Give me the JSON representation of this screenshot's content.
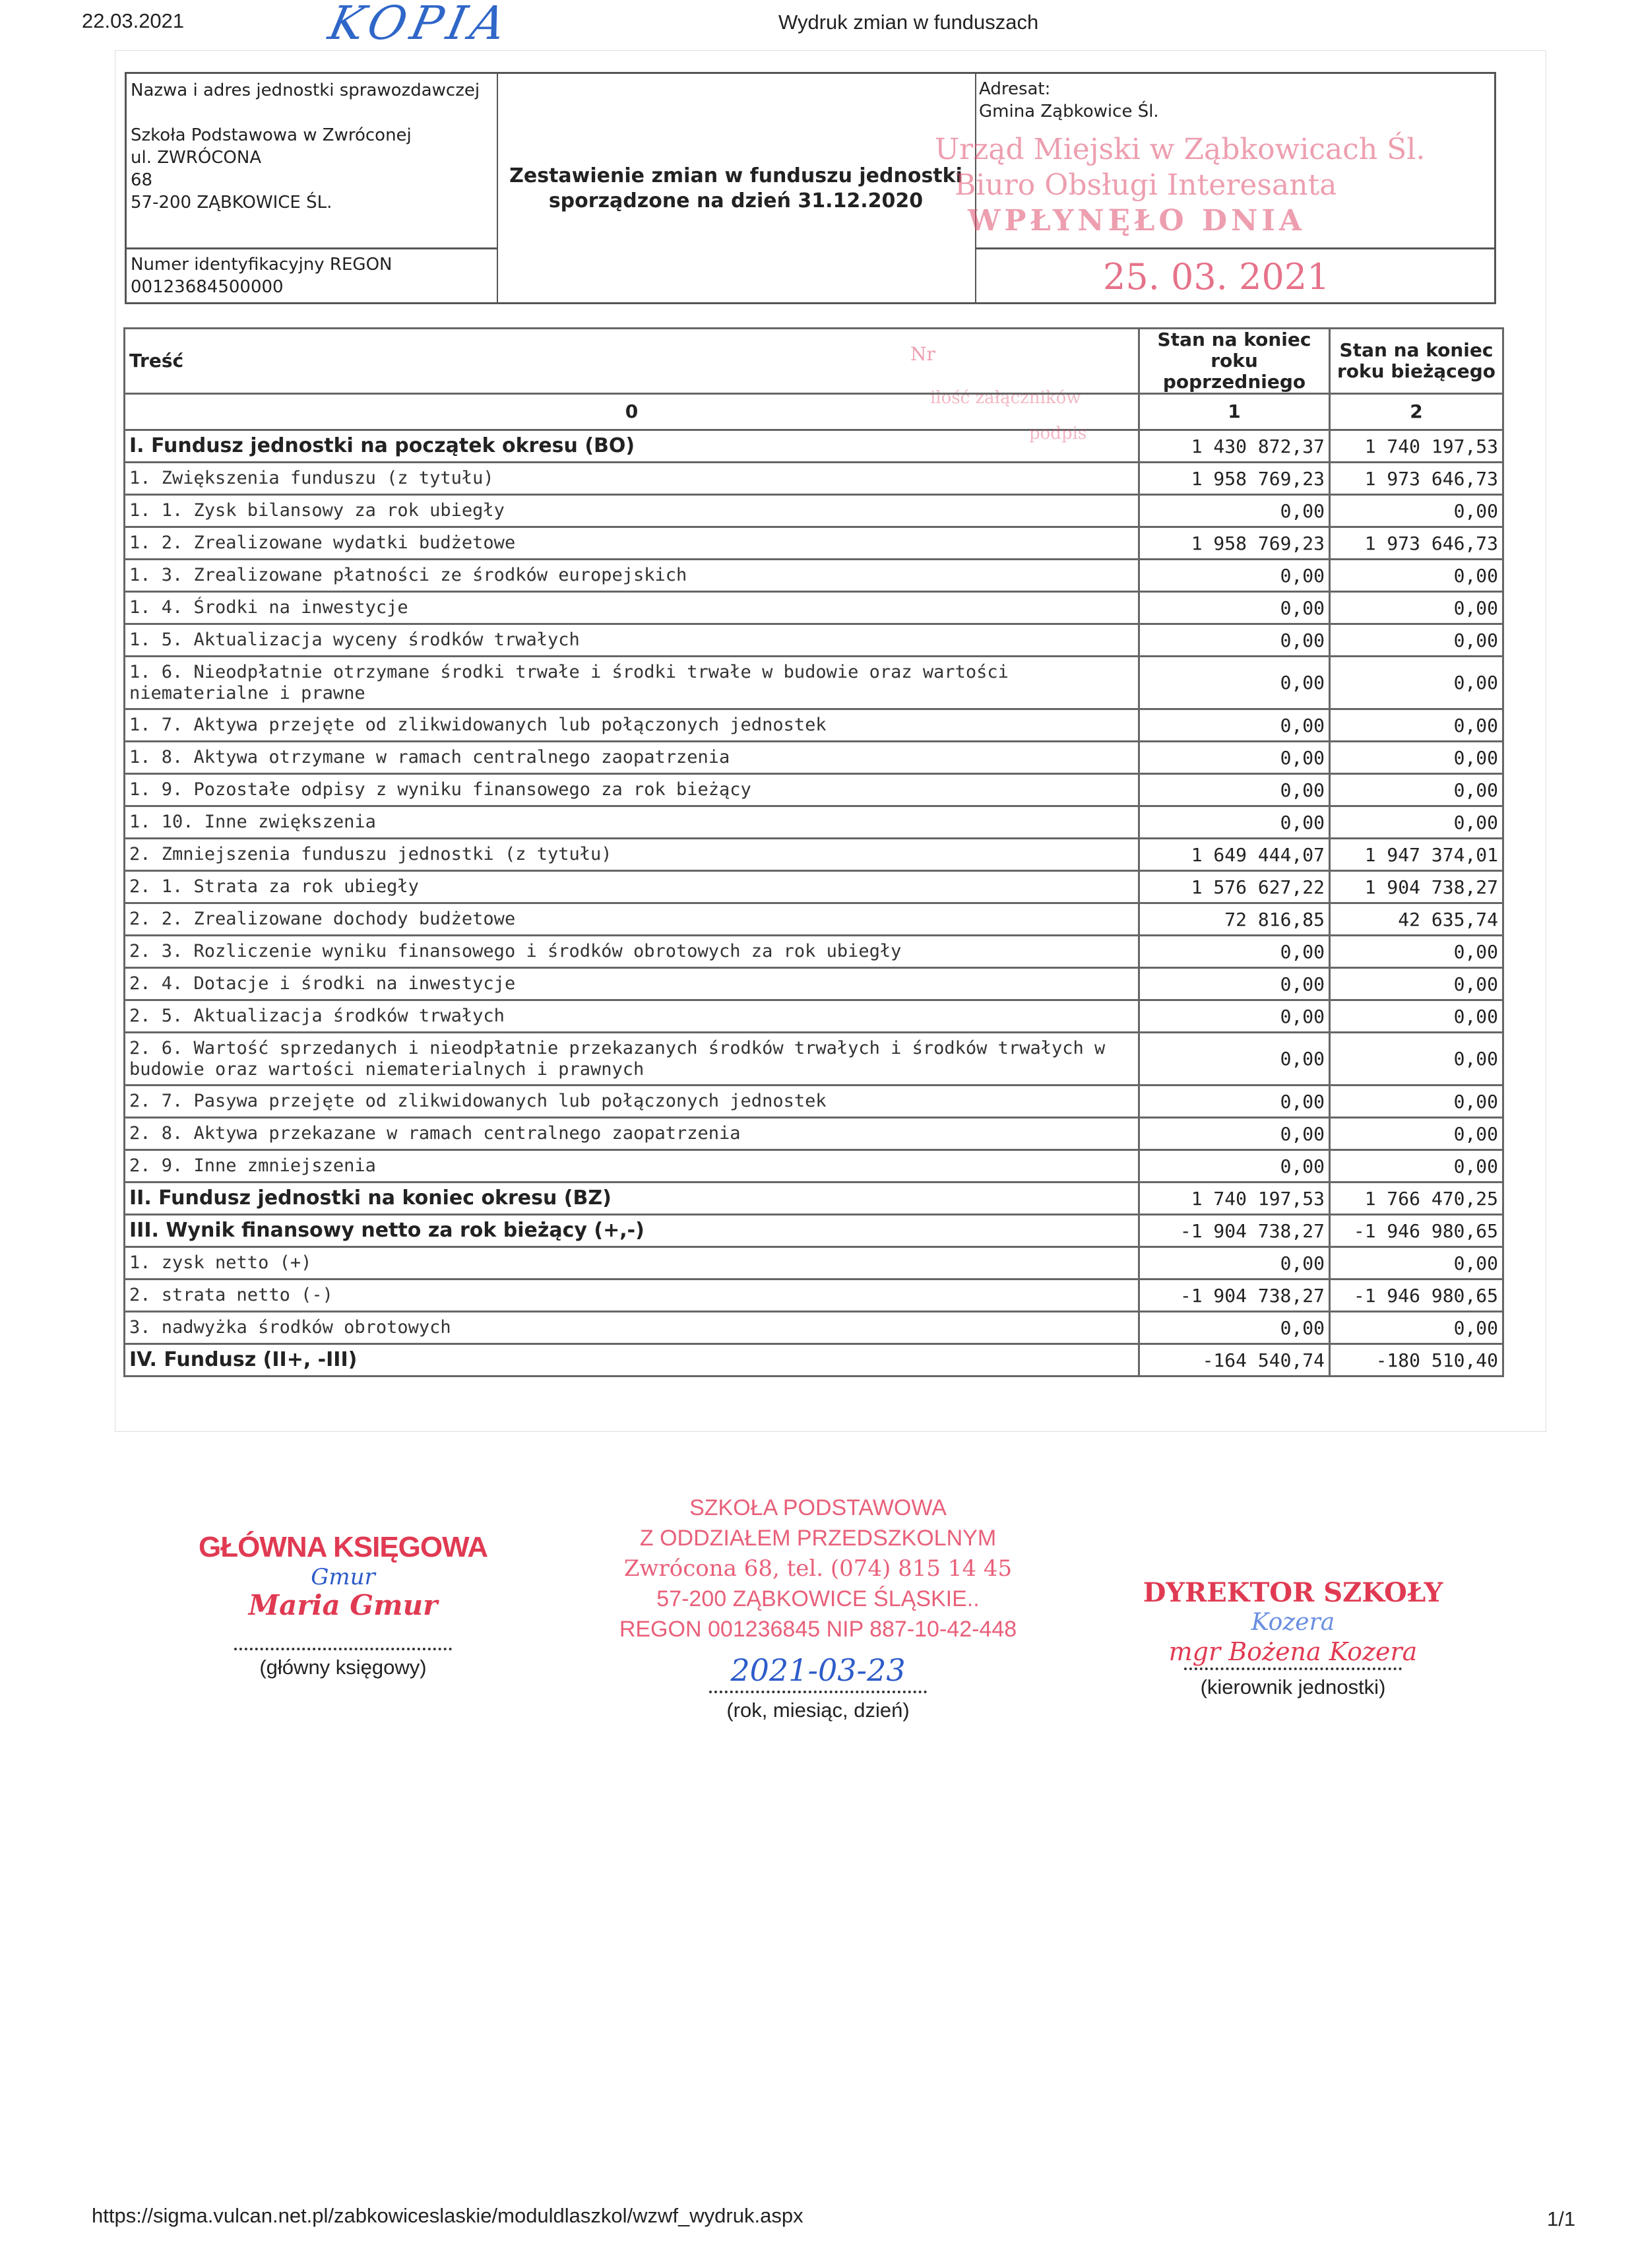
{
  "print_header": {
    "date": "22.03.2021",
    "copy_mark": "KOPIA",
    "title": "Wydruk zmian w funduszach"
  },
  "unit": {
    "label": "Nazwa i adres jednostki sprawozdawczej",
    "name": "Szkoła Podstawowa w Zwróconej",
    "street": "ul. ZWRÓCONA",
    "number": "68",
    "city": "57-200 ZĄBKOWICE ŚL.",
    "regon_label": "Numer identyfikacyjny REGON",
    "regon": "00123684500000"
  },
  "report": {
    "title_line1": "Zestawienie zmian w funduszu jednostki",
    "title_line2": "sporządzone na dzień 31.12.2020"
  },
  "addressee": {
    "label": "Adresat:",
    "name": "Gmina Ząbkowice Śl."
  },
  "received_stamp": {
    "line1": "Urząd Miejski w Ząbkowicach Śl.",
    "line2": "Biuro Obsługi Interesanta",
    "line3": "WPŁYNĘŁO DNIA",
    "date": "25. 03. 2021",
    "nr": "Nr",
    "attachments": "ilość załączników",
    "signature": "podpis"
  },
  "table": {
    "headers": {
      "content": "Treść",
      "col1": "Stan na koniec roku poprzedniego",
      "col2": "Stan na koniec roku bieżącego",
      "idx0": "0",
      "idx1": "1",
      "idx2": "2"
    },
    "rows": [
      {
        "label": "I. Fundusz jednostki na początek okresu (BO)",
        "prev": "1 430 872,37",
        "curr": "1 740 197,53",
        "section": true
      },
      {
        "label": "1. Zwiększenia funduszu (z tytułu)",
        "prev": "1 958 769,23",
        "curr": "1 973 646,73"
      },
      {
        "label": "1. 1. Zysk bilansowy za rok ubiegły",
        "prev": "0,00",
        "curr": "0,00"
      },
      {
        "label": "1. 2. Zrealizowane wydatki budżetowe",
        "prev": "1 958 769,23",
        "curr": "1 973 646,73"
      },
      {
        "label": "1. 3. Zrealizowane płatności ze środków europejskich",
        "prev": "0,00",
        "curr": "0,00"
      },
      {
        "label": "1. 4. Środki na inwestycje",
        "prev": "0,00",
        "curr": "0,00"
      },
      {
        "label": "1. 5. Aktualizacja wyceny środków trwałych",
        "prev": "0,00",
        "curr": "0,00"
      },
      {
        "label": "1. 6. Nieodpłatnie otrzymane środki trwałe i środki trwałe w budowie oraz wartości niematerialne i prawne",
        "prev": "0,00",
        "curr": "0,00",
        "double": true
      },
      {
        "label": "1. 7. Aktywa przejęte od zlikwidowanych lub połączonych jednostek",
        "prev": "0,00",
        "curr": "0,00"
      },
      {
        "label": "1. 8. Aktywa otrzymane w ramach centralnego zaopatrzenia",
        "prev": "0,00",
        "curr": "0,00"
      },
      {
        "label": "1. 9. Pozostałe odpisy z wyniku finansowego za rok bieżący",
        "prev": "0,00",
        "curr": "0,00"
      },
      {
        "label": "1. 10. Inne zwiększenia",
        "prev": "0,00",
        "curr": "0,00"
      },
      {
        "label": "2. Zmniejszenia funduszu jednostki (z tytułu)",
        "prev": "1 649 444,07",
        "curr": "1 947 374,01"
      },
      {
        "label": "2. 1. Strata za rok ubiegły",
        "prev": "1 576 627,22",
        "curr": "1 904 738,27"
      },
      {
        "label": "2. 2. Zrealizowane dochody budżetowe",
        "prev": "72 816,85",
        "curr": "42 635,74"
      },
      {
        "label": "2. 3. Rozliczenie wyniku finansowego i środków obrotowych za rok ubiegły",
        "prev": "0,00",
        "curr": "0,00"
      },
      {
        "label": "2. 4. Dotacje i środki na inwestycje",
        "prev": "0,00",
        "curr": "0,00"
      },
      {
        "label": "2. 5. Aktualizacja środków trwałych",
        "prev": "0,00",
        "curr": "0,00"
      },
      {
        "label": "2. 6. Wartość sprzedanych i nieodpłatnie przekazanych środków trwałych i środków trwałych w budowie oraz wartości niematerialnych i prawnych",
        "prev": "0,00",
        "curr": "0,00",
        "double": true
      },
      {
        "label": "2. 7. Pasywa przejęte od zlikwidowanych lub połączonych jednostek",
        "prev": "0,00",
        "curr": "0,00"
      },
      {
        "label": "2. 8. Aktywa przekazane w ramach centralnego zaopatrzenia",
        "prev": "0,00",
        "curr": "0,00"
      },
      {
        "label": "2. 9. Inne zmniejszenia",
        "prev": "0,00",
        "curr": "0,00"
      },
      {
        "label": "II. Fundusz jednostki na koniec okresu (BZ)",
        "prev": "1 740 197,53",
        "curr": "1 766 470,25",
        "section": true
      },
      {
        "label": "III. Wynik finansowy netto za rok bieżący (+,-)",
        "prev": "-1 904 738,27",
        "curr": "-1 946 980,65",
        "section": true
      },
      {
        "label": "1. zysk netto (+)",
        "prev": "0,00",
        "curr": "0,00"
      },
      {
        "label": "2. strata netto (-)",
        "prev": "-1 904 738,27",
        "curr": "-1 946 980,65"
      },
      {
        "label": "3. nadwyżka środków obrotowych",
        "prev": "0,00",
        "curr": "0,00"
      },
      {
        "label": "IV. Fundusz (II+, -III)",
        "prev": "-164 540,74",
        "curr": "-180 510,40",
        "section": true
      }
    ]
  },
  "signatures": {
    "accountant": {
      "stamp_title": "GŁÓWNA KSIĘGOWA",
      "stamp_name": "Maria Gmur",
      "handwritten": "Gmur",
      "caption": "(główny księgowy)"
    },
    "school_stamp": {
      "line1": "SZKOŁA PODSTAWOWA",
      "line2": "Z ODDZIAŁEM PRZEDSZKOLNYM",
      "line3": "Zwrócona 68, tel. (074) 815 14 45",
      "line4": "57-200 ZĄBKOWICE ŚLĄSKIE..",
      "line5": "REGON 001236845 NIP  887-10-42-448"
    },
    "date": {
      "handwritten": "2021-03-23",
      "caption": "(rok, miesiąc, dzień)"
    },
    "director": {
      "stamp_title": "DYREKTOR SZKOŁY",
      "stamp_name": "mgr Bożena Kozera",
      "handwritten": "Kozera",
      "caption": "(kierownik jednostki)"
    }
  },
  "footer": {
    "url": "https://sigma.vulcan.net.pl/zabkowiceslaskie/moduldlaszkol/wzwf_wydruk.aspx",
    "page": "1/1"
  }
}
